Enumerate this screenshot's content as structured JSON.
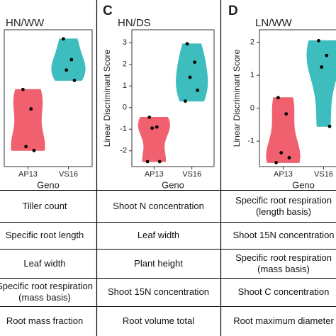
{
  "chart_data": [
    {
      "type": "violin",
      "title": "HN/WW",
      "x_label": "Geno",
      "categories": [
        "AP13",
        "VS16"
      ],
      "colors": [
        "#f0606e",
        "#3dbdbd"
      ],
      "values": [
        [
          0.4,
          -0.35,
          -1.8,
          -1.95
        ],
        [
          2.35,
          1.55,
          1.15,
          0.75
        ]
      ],
      "ylim": [
        -2.57,
        2.7
      ]
    },
    {
      "type": "violin",
      "panel_label": "C",
      "title": "HN/DS",
      "x_label": "Geno",
      "y_label": "Linear Discriminant Score",
      "categories": [
        "AP13",
        "VS16"
      ],
      "colors": [
        "#f0606e",
        "#3dbdbd"
      ],
      "values": [
        [
          -0.45,
          -0.9,
          -0.95,
          -2.5,
          -2.5
        ],
        [
          2.95,
          2.1,
          1.4,
          0.8,
          0.3
        ]
      ],
      "ylim": [
        -2.73,
        3.6
      ],
      "yticks": [
        -2,
        -1,
        0,
        1,
        2,
        3
      ]
    },
    {
      "type": "violin",
      "panel_label": "D",
      "title": "LN/WW",
      "x_label": "Geno",
      "y_label": "Linear Discriminant Score",
      "categories": [
        "AP13",
        "VS16"
      ],
      "colors": [
        "#f0606e",
        "#3dbdbd"
      ],
      "values": [
        [
          0.32,
          -0.17,
          -1.35,
          -1.5,
          -1.65
        ],
        [
          2.05,
          1.6,
          1.25,
          -0.55
        ]
      ],
      "ylim": [
        -1.77,
        2.38
      ],
      "yticks": [
        -1,
        0,
        1,
        2
      ]
    }
  ],
  "table": {
    "rows": [
      [
        "Tiller count",
        "Shoot N concentration",
        "Specific root respiration\n(length basis)"
      ],
      [
        "Specific root length",
        "Leaf width",
        "Shoot 15N concentration"
      ],
      [
        "Leaf width",
        "Plant height",
        "Specific root respiration\n(mass basis)"
      ],
      [
        "Specific root respiration\n(mass basis)",
        "Shoot 15N concentration",
        "Shoot C concentration"
      ],
      [
        "Root mass fraction",
        "Root volume total",
        "Root maximum diameter"
      ]
    ]
  }
}
